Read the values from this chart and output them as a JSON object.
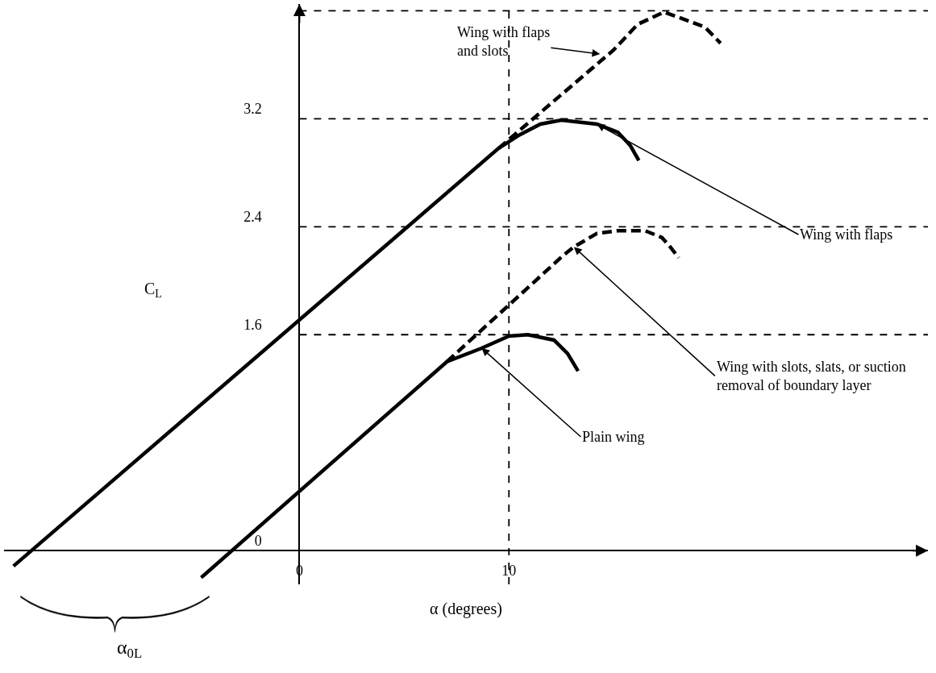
{
  "chart_data": {
    "type": "line",
    "xlabel": "α (degrees)",
    "ylabel": "C$_{L}$",
    "xlim": [
      -14.1,
      30.0
    ],
    "ylim": [
      -0.25,
      4.05
    ],
    "xticks": [
      0,
      10
    ],
    "yticks": [
      0,
      1.6,
      2.4,
      3.2
    ],
    "grid": false,
    "marker": "none",
    "series": [
      {
        "color": "#000000",
        "line_style": "solid",
        "x": [
          -13.65,
          9.5,
          10.5,
          11.5,
          12.5,
          14.2,
          15.2,
          15.8,
          16.2
        ],
        "values": [
          -0.115,
          2.98,
          3.08,
          3.16,
          3.19,
          3.16,
          3.1,
          3.0,
          2.89
        ]
      },
      {
        "color": "#000000",
        "line_style": "dashed",
        "x": [
          9.5,
          15.0,
          16.15,
          17.4,
          18.3,
          19.35,
          20.1
        ],
        "values": [
          2.98,
          3.71,
          3.9,
          3.99,
          3.94,
          3.88,
          3.76
        ]
      },
      {
        "color": "#000000",
        "line_style": "solid",
        "x": [
          -4.69,
          7.04,
          8.7,
          10.0,
          10.9,
          12.15,
          12.8,
          13.3
        ],
        "values": [
          -0.2,
          1.4,
          1.5,
          1.59,
          1.6,
          1.56,
          1.46,
          1.33
        ]
      },
      {
        "color": "#000000",
        "line_style": "dashed",
        "x": [
          7.04,
          12.54,
          13.1,
          14.2,
          15.2,
          16.5,
          17.3,
          17.7,
          18.1
        ],
        "values": [
          1.4,
          2.18,
          2.25,
          2.35,
          2.37,
          2.37,
          2.32,
          2.25,
          2.17
        ]
      }
    ],
    "ref_lines": [
      {
        "axis": "y",
        "value": 4.0,
        "line_style": "dashed",
        "color": "#000000"
      },
      {
        "axis": "y",
        "value": 3.2,
        "line_style": "dashed",
        "color": "#000000"
      },
      {
        "axis": "y",
        "value": 2.4,
        "line_style": "dashed",
        "color": "#000000"
      },
      {
        "axis": "y",
        "value": 1.6,
        "line_style": "dashed",
        "color": "#000000"
      },
      {
        "axis": "x",
        "value": 10,
        "line_style": "dashed",
        "color": "#000000"
      }
    ],
    "annotations": [
      {
        "text": "Wing with flaps\nand slots",
        "x": 14.35,
        "y": 3.68
      },
      {
        "text": "Wing with flaps",
        "x": 14.2,
        "y": 3.16
      },
      {
        "text": "Wing with slots, slats, or suction\nremoval of boundary layer",
        "x": 13.1,
        "y": 2.25
      },
      {
        "text": "Plain wing",
        "x": 8.7,
        "y": 1.5
      },
      "α$_{0L}$"
    ]
  }
}
